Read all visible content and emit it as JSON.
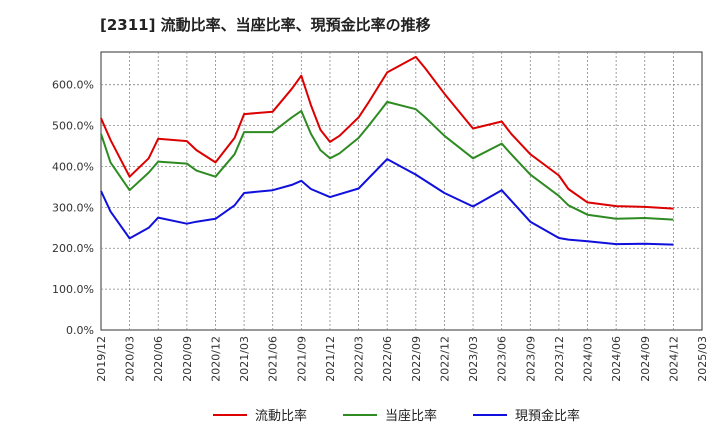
{
  "chart_data": {
    "type": "line",
    "title": "[2311]  流動比率、当座比率、現預金比率の推移",
    "xlabel": "",
    "ylabel": "",
    "ylim": [
      0,
      680
    ],
    "yticks": [
      0,
      100,
      200,
      300,
      400,
      500,
      600
    ],
    "ytick_labels": [
      "0.0%",
      "100.0%",
      "200.0%",
      "300.0%",
      "400.0%",
      "500.0%",
      "600.0%"
    ],
    "xtick_labels": [
      "2019/12",
      "2020/03",
      "2020/06",
      "2020/09",
      "2020/12",
      "2021/03",
      "2021/06",
      "2021/09",
      "2021/12",
      "2022/03",
      "2022/06",
      "2022/09",
      "2022/12",
      "2023/03",
      "2023/06",
      "2023/09",
      "2023/12",
      "2024/03",
      "2024/06",
      "2024/09",
      "2024/12",
      "2025/03"
    ],
    "x_months_start": "2019/12",
    "x_months_end": "2025/03",
    "grid": true,
    "legend_position": "bottom",
    "series": [
      {
        "name": "流動比率",
        "color": "#dd0000",
        "x": [
          "2019/12",
          "2020/01",
          "2020/03",
          "2020/05",
          "2020/06",
          "2020/09",
          "2020/10",
          "2020/12",
          "2021/02",
          "2021/03",
          "2021/06",
          "2021/08",
          "2021/09",
          "2021/10",
          "2021/11",
          "2021/12",
          "2022/01",
          "2022/03",
          "2022/04",
          "2022/06",
          "2022/09",
          "2022/10",
          "2022/12",
          "2023/03",
          "2023/06",
          "2023/07",
          "2023/09",
          "2023/12",
          "2024/01",
          "2024/03",
          "2024/06",
          "2024/09",
          "2024/12"
        ],
        "values": [
          518,
          465,
          375,
          420,
          468,
          462,
          440,
          410,
          470,
          528,
          534,
          590,
          622,
          550,
          490,
          460,
          475,
          520,
          555,
          630,
          668,
          640,
          578,
          493,
          510,
          480,
          430,
          378,
          345,
          312,
          303,
          301,
          297
        ]
      },
      {
        "name": "当座比率",
        "color": "#2e8b22",
        "x": [
          "2019/12",
          "2020/01",
          "2020/03",
          "2020/05",
          "2020/06",
          "2020/09",
          "2020/10",
          "2020/12",
          "2021/02",
          "2021/03",
          "2021/06",
          "2021/08",
          "2021/09",
          "2021/10",
          "2021/11",
          "2021/12",
          "2022/01",
          "2022/03",
          "2022/04",
          "2022/06",
          "2022/09",
          "2022/10",
          "2022/12",
          "2023/03",
          "2023/06",
          "2023/07",
          "2023/09",
          "2023/12",
          "2024/01",
          "2024/03",
          "2024/06",
          "2024/09",
          "2024/12"
        ],
        "values": [
          480,
          410,
          342,
          385,
          412,
          407,
          390,
          375,
          430,
          484,
          484,
          520,
          536,
          480,
          440,
          420,
          432,
          470,
          498,
          558,
          540,
          520,
          475,
          420,
          456,
          430,
          380,
          328,
          305,
          282,
          272,
          274,
          270
        ]
      },
      {
        "name": "現預金比率",
        "color": "#1010dd",
        "x": [
          "2019/12",
          "2020/01",
          "2020/03",
          "2020/05",
          "2020/06",
          "2020/09",
          "2020/10",
          "2020/12",
          "2021/02",
          "2021/03",
          "2021/06",
          "2021/08",
          "2021/09",
          "2021/10",
          "2021/12",
          "2022/03",
          "2022/06",
          "2022/09",
          "2022/12",
          "2023/03",
          "2023/06",
          "2023/09",
          "2023/12",
          "2024/01",
          "2024/03",
          "2024/06",
          "2024/09",
          "2024/12"
        ],
        "values": [
          340,
          290,
          224,
          250,
          275,
          260,
          265,
          272,
          305,
          335,
          342,
          355,
          365,
          345,
          325,
          346,
          418,
          380,
          335,
          302,
          342,
          265,
          225,
          221,
          217,
          210,
          211,
          209
        ]
      }
    ]
  }
}
